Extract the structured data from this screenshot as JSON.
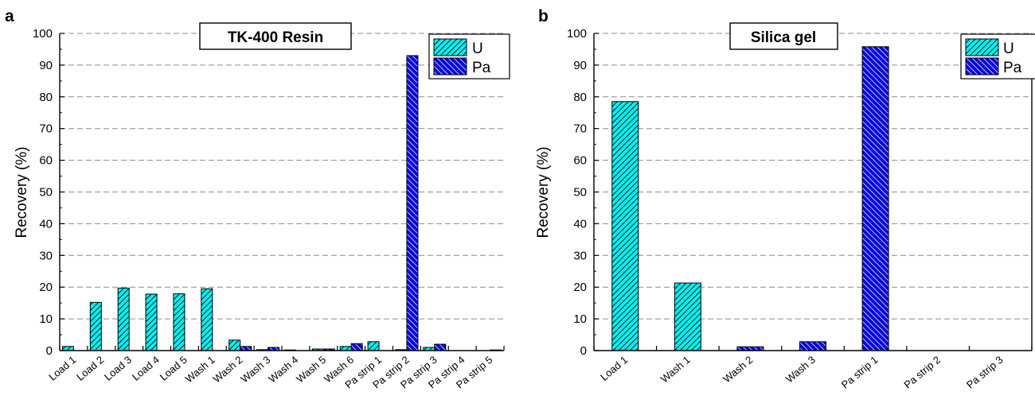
{
  "colors": {
    "U": "#00f0f0",
    "Pa": "#0a0ad8",
    "grid": "#8c8c8c",
    "axis": "#000000"
  },
  "chart_data": [
    {
      "type": "bar",
      "panel_label": "a",
      "title": "TK-400 Resin",
      "xlabel": "",
      "ylabel": "Recovery (%)",
      "ylim": [
        0,
        100
      ],
      "yticks": [
        0,
        10,
        20,
        30,
        40,
        50,
        60,
        70,
        80,
        90,
        100
      ],
      "grid": true,
      "legend_position": "top-right",
      "categories": [
        "Load 1",
        "Load 2",
        "Load 3",
        "Load 4",
        "Load 5",
        "Wash 1",
        "Wash 2",
        "Wash 3",
        "Wash 4",
        "Wash 5",
        "Wash 6",
        "Pa strip 1",
        "Pa strip 2",
        "Pa strip 3",
        "Pa strip 4",
        "Pa strip 5"
      ],
      "series": [
        {
          "name": "U",
          "pattern": "forward-hatch",
          "values": [
            1.3,
            15.2,
            19.7,
            17.8,
            17.9,
            19.5,
            3.3,
            0.3,
            0.2,
            0.5,
            1.3,
            2.8,
            0.3,
            1.0,
            0.0,
            0.0
          ]
        },
        {
          "name": "Pa",
          "pattern": "back-hatch",
          "values": [
            0.0,
            0.0,
            0.0,
            0.0,
            0.0,
            0.0,
            1.3,
            1.0,
            0.0,
            0.5,
            2.2,
            0.0,
            93.0,
            2.0,
            0.0,
            0.2
          ]
        }
      ]
    },
    {
      "type": "bar",
      "panel_label": "b",
      "title": "Silica gel",
      "xlabel": "",
      "ylabel": "Recovery (%)",
      "ylim": [
        0,
        100
      ],
      "yticks": [
        0,
        10,
        20,
        30,
        40,
        50,
        60,
        70,
        80,
        90,
        100
      ],
      "grid": true,
      "legend_position": "top-right",
      "categories": [
        "Load 1",
        "Wash 1",
        "Wash 2",
        "Wash 3",
        "Pa strip 1",
        "Pa strip 2",
        "Pa strip 3"
      ],
      "series": [
        {
          "name": "U",
          "pattern": "forward-hatch",
          "values": [
            78.5,
            21.3,
            0.0,
            0.0,
            0.0,
            0.0,
            0.0
          ]
        },
        {
          "name": "Pa",
          "pattern": "back-hatch",
          "values": [
            0.0,
            0.0,
            1.2,
            2.8,
            95.8,
            0.0,
            0.0
          ]
        }
      ]
    }
  ]
}
